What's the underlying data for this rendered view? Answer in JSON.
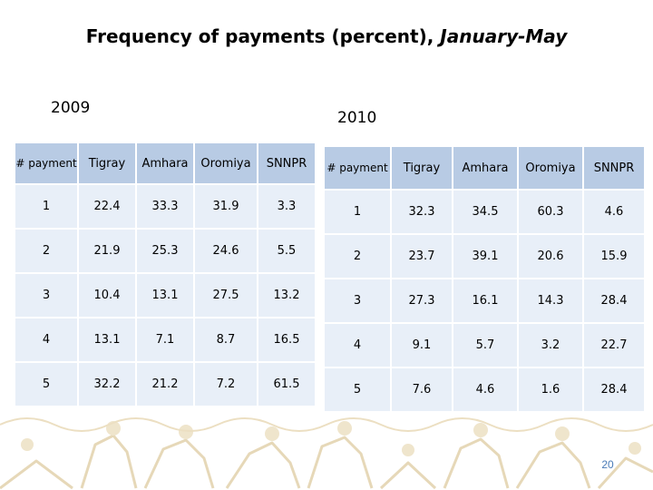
{
  "title": {
    "main": "Frequency of payments (percent), ",
    "italic": "January-May"
  },
  "year_left": "2009",
  "year_right": "2010",
  "table_2009": {
    "headers": [
      "# payment",
      "Tigray",
      "Amhara",
      "Oromiya",
      "SNNPR"
    ],
    "rows": [
      [
        "1",
        "22.4",
        "33.3",
        "31.9",
        "3.3"
      ],
      [
        "2",
        "21.9",
        "25.3",
        "24.6",
        "5.5"
      ],
      [
        "3",
        "10.4",
        "13.1",
        "27.5",
        "13.2"
      ],
      [
        "4",
        "13.1",
        "7.1",
        "8.7",
        "16.5"
      ],
      [
        "5",
        "32.2",
        "21.2",
        "7.2",
        "61.5"
      ]
    ]
  },
  "table_2010": {
    "headers": [
      "# payment",
      "Tigray",
      "Amhara",
      "Oromiya",
      "SNNPR"
    ],
    "rows": [
      [
        "1",
        "32.3",
        "34.5",
        "60.3",
        "4.6"
      ],
      [
        "2",
        "23.7",
        "39.1",
        "20.6",
        "15.9"
      ],
      [
        "3",
        "27.3",
        "16.1",
        "14.3",
        "28.4"
      ],
      [
        "4",
        "9.1",
        "5.7",
        "3.2",
        "22.7"
      ],
      [
        "5",
        "7.6",
        "4.6",
        "1.6",
        "28.4"
      ]
    ]
  },
  "page_number": "20",
  "colors": {
    "header_fill": "#b8cbe4",
    "cell_fill": "#e8eff8",
    "decor": "#e6d8b8",
    "page_number": "#4a7bb7"
  }
}
